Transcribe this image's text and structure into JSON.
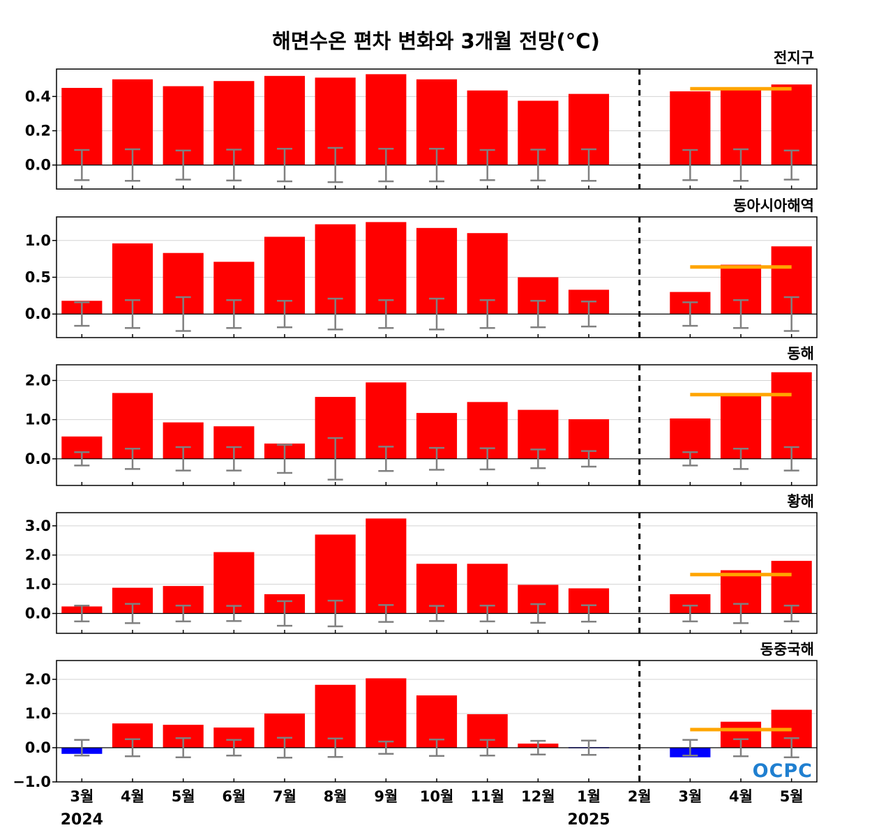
{
  "title": "해면수온 편차 변화와 3개월 전망(°C)",
  "logo": "OCPC",
  "colors": {
    "positive": "#ff0000",
    "negative": "#0000ff",
    "outlook": "#ffa500",
    "error_bar": "#808080",
    "divider": "#000000"
  },
  "chart_data": {
    "type": "bar",
    "categories": [
      "3월",
      "4월",
      "5월",
      "6월",
      "7월",
      "8월",
      "9월",
      "10월",
      "11월",
      "12월",
      "1월",
      "2월",
      "3월",
      "4월",
      "5월"
    ],
    "year_labels": [
      {
        "label": "2024",
        "index": 0
      },
      {
        "label": "2025",
        "index": 10
      }
    ],
    "divider_after_index": 11,
    "outlook_range": [
      12,
      14
    ],
    "grid": "horizontal",
    "panels": [
      {
        "name": "전지구",
        "ylim": [
          -0.14,
          0.56
        ],
        "yticks": [
          0.0,
          0.2,
          0.4
        ],
        "tick_labels": [
          "0.0",
          "0.2",
          "0.4"
        ],
        "values": [
          0.45,
          0.5,
          0.46,
          0.49,
          0.52,
          0.51,
          0.53,
          0.5,
          0.435,
          0.375,
          0.415,
          0.0,
          0.43,
          0.445,
          0.47
        ],
        "error": [
          0.088,
          0.092,
          0.085,
          0.09,
          0.095,
          0.1,
          0.095,
          0.095,
          0.088,
          0.09,
          0.092,
          null,
          0.088,
          0.092,
          0.085
        ],
        "outlook": 0.445
      },
      {
        "name": "동아시아해역",
        "ylim": [
          -0.32,
          1.32
        ],
        "yticks": [
          0.0,
          0.5,
          1.0
        ],
        "tick_labels": [
          "0.0",
          "0.5",
          "1.0"
        ],
        "values": [
          0.18,
          0.96,
          0.83,
          0.71,
          1.05,
          1.22,
          1.25,
          1.17,
          1.1,
          0.5,
          0.33,
          0.0,
          0.3,
          0.67,
          0.92
        ],
        "error": [
          0.16,
          0.19,
          0.23,
          0.19,
          0.18,
          0.21,
          0.19,
          0.21,
          0.19,
          0.18,
          0.17,
          null,
          0.16,
          0.19,
          0.23
        ],
        "outlook": 0.64
      },
      {
        "name": "동해",
        "ylim": [
          -0.68,
          2.4
        ],
        "yticks": [
          0.0,
          1.0,
          2.0
        ],
        "tick_labels": [
          "0.0",
          "1.0",
          "2.0"
        ],
        "values": [
          0.57,
          1.68,
          0.93,
          0.83,
          0.39,
          1.58,
          1.95,
          1.17,
          1.45,
          1.25,
          1.01,
          0.0,
          1.03,
          1.65,
          2.21
        ],
        "error": [
          0.17,
          0.26,
          0.3,
          0.3,
          0.36,
          0.53,
          0.31,
          0.28,
          0.27,
          0.24,
          0.2,
          null,
          0.17,
          0.26,
          0.3
        ],
        "outlook": 1.64
      },
      {
        "name": "황해",
        "ylim": [
          -0.68,
          3.45
        ],
        "yticks": [
          0.0,
          1.0,
          2.0,
          3.0
        ],
        "tick_labels": [
          "0.0",
          "1.0",
          "2.0",
          "3.0"
        ],
        "values": [
          0.24,
          0.88,
          0.94,
          2.1,
          0.66,
          2.7,
          3.25,
          1.7,
          1.7,
          0.98,
          0.86,
          0.0,
          0.66,
          1.48,
          1.8
        ],
        "error": [
          0.27,
          0.33,
          0.27,
          0.26,
          0.42,
          0.44,
          0.29,
          0.26,
          0.27,
          0.32,
          0.28,
          null,
          0.27,
          0.33,
          0.27
        ],
        "outlook": 1.33
      },
      {
        "name": "동중국해",
        "ylim": [
          -1.0,
          2.55
        ],
        "yticks": [
          -1.0,
          0.0,
          1.0,
          2.0
        ],
        "tick_labels": [
          "−1.0",
          "0.0",
          "1.0",
          "2.0"
        ],
        "values": [
          -0.18,
          0.71,
          0.67,
          0.59,
          1.0,
          1.84,
          2.03,
          1.53,
          0.98,
          0.12,
          -0.03,
          0.0,
          -0.28,
          0.76,
          1.11
        ],
        "error": [
          0.23,
          0.25,
          0.28,
          0.23,
          0.29,
          0.27,
          0.18,
          0.24,
          0.23,
          0.2,
          0.21,
          null,
          0.23,
          0.25,
          0.28
        ],
        "outlook": 0.53
      }
    ]
  }
}
